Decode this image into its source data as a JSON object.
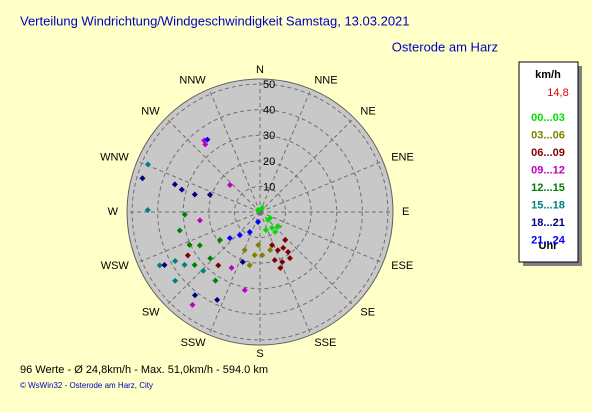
{
  "chart_data": {
    "type": "polar",
    "title": "Verteilung Windrichtung/Windgeschwindigkeit  Samstag, 13.03.2021",
    "subtitle": "Osterode am Harz",
    "directions": [
      "N",
      "NNE",
      "NE",
      "ENE",
      "E",
      "ESE",
      "SE",
      "SSE",
      "S",
      "SSW",
      "SW",
      "WSW",
      "W",
      "WNW",
      "NW",
      "NNW"
    ],
    "rlim": [
      0,
      52
    ],
    "rticks": [
      10,
      20,
      30,
      40,
      50
    ],
    "legend_title": "km/h",
    "current_speed": "14,8",
    "legend_footer": "Uhr",
    "footer": "96 Werte   -   Ø 24,8km/h  -  Max. 51,0km/h   -   594.0 km",
    "credit": "© WsWin32  -  Osterode am Harz, City",
    "series": [
      {
        "name": "00...03",
        "color": "#00e000",
        "directions": [
          27,
          135,
          143,
          143,
          162,
          128,
          121,
          315
        ],
        "values": [
          1.8,
          4.4,
          7.8,
          9.8,
          7.4,
          8.9,
          4.6,
          1.1
        ]
      },
      {
        "name": "03...06",
        "color": "#808000",
        "directions": [
          183,
          177,
          187,
          202,
          191,
          165
        ],
        "values": [
          12.9,
          16.9,
          17,
          16,
          21.2,
          15.4
        ]
      },
      {
        "name": "06...09",
        "color": "#800000",
        "directions": [
          160,
          155,
          147,
          145,
          163,
          156,
          147,
          160,
          138,
          239,
          218
        ],
        "values": [
          13.8,
          16.5,
          16.7,
          19.1,
          19.7,
          21.4,
          21.5,
          23.3,
          14.7,
          32.9,
          26.5
        ]
      },
      {
        "name": "09...12",
        "color": "#c000c0",
        "directions": [
          216,
          191,
          207,
          321,
          312,
          262,
          322
        ],
        "values": [
          44.9,
          31.1,
          24.5,
          34,
          15.8,
          23.7,
          35.5
        ]
      },
      {
        "name": "12...15",
        "color": "#008000",
        "directions": [
          268,
          245,
          241,
          227,
          235,
          231,
          213,
          257
        ],
        "values": [
          29.4,
          30.4,
          26.9,
          26.6,
          19.1,
          32.9,
          32,
          32.2
        ]
      },
      {
        "name": "15...18",
        "color": "#008080",
        "directions": [
          293,
          271,
          242,
          240,
          235,
          231,
          224
        ],
        "values": [
          47.6,
          43.9,
          44.4,
          38.3,
          36,
          42.7,
          31.9
        ]
      },
      {
        "name": "18...21",
        "color": "#000080",
        "directions": [
          286,
          288,
          286,
          285,
          289,
          241,
          218,
          206,
          199
        ],
        "values": [
          47.8,
          35,
          31.8,
          26.4,
          20.7,
          42.7,
          41.3,
          38.2,
          20.7
        ]
      },
      {
        "name": "21...24",
        "color": "#0000ff",
        "directions": [
          229,
          221,
          207,
          191,
          324
        ],
        "values": [
          15.6,
          12,
          8.8,
          4,
          35
        ]
      }
    ]
  }
}
